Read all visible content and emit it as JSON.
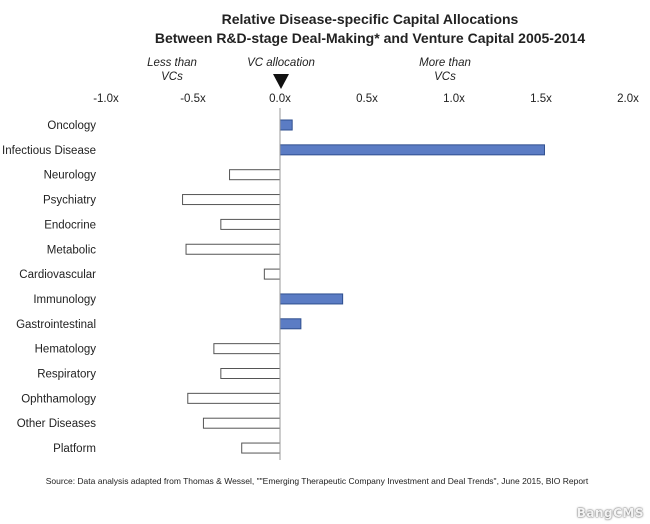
{
  "chart_data": {
    "type": "bar",
    "orientation": "horizontal",
    "title": [
      "Relative Disease-specific Capital Allocations",
      "Between R&D-stage Deal-Making* and Venture Capital 2005-2014"
    ],
    "categories": [
      "Oncology",
      "Infectious Disease",
      "Neurology",
      "Psychiatry",
      "Endocrine",
      "Metabolic",
      "Cardiovascular",
      "Immunology",
      "Gastrointestinal",
      "Hematology",
      "Respiratory",
      "Ophthamology",
      "Other Diseases",
      "Platform"
    ],
    "values": [
      0.07,
      1.52,
      -0.29,
      -0.56,
      -0.34,
      -0.54,
      -0.09,
      0.36,
      0.12,
      -0.38,
      -0.34,
      -0.53,
      -0.44,
      -0.22
    ],
    "xlim": [
      -1.0,
      2.0
    ],
    "xticks": [
      -1.0,
      -0.5,
      0.0,
      0.5,
      1.0,
      1.5,
      2.0
    ],
    "xtick_labels": [
      "-1.0x",
      "-0.5x",
      "0.0x",
      "0.5x",
      "1.0x",
      "1.5x",
      "2.0x"
    ],
    "axis_position": "top",
    "grid": false,
    "legend": "none",
    "annotations": {
      "less": [
        "Less than",
        "VCs"
      ],
      "vc": "VC allocation",
      "more": [
        "More than",
        "VCs"
      ]
    },
    "colors": {
      "positive_fill": "#5b7cc4",
      "positive_stroke": "#2f4f8f",
      "negative_fill": "#ffffff",
      "negative_stroke": "#555555",
      "axis": "#999999"
    },
    "source": "Source: Data analysis adapted from Thomas & Wessel, \"\"Emerging Therapeutic Company Investment and Deal Trends\", June 2015, BIO Report"
  },
  "watermark": "BangCMS"
}
